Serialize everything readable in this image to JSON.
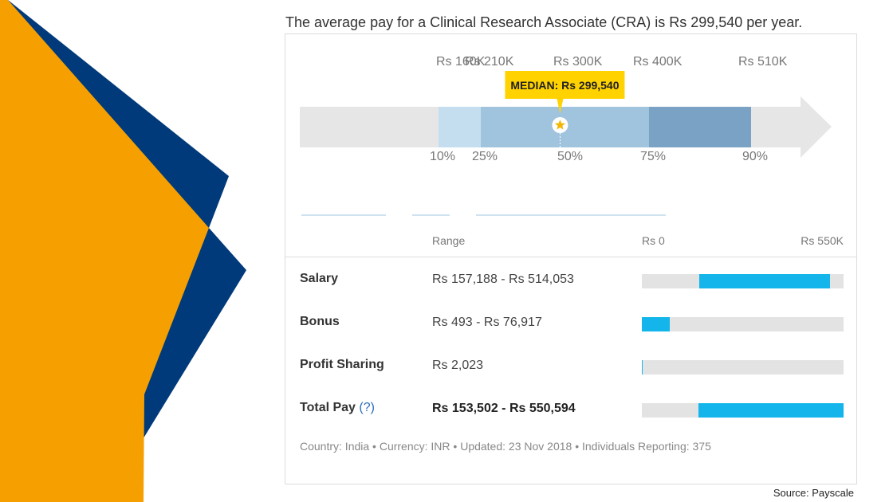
{
  "headline": "The average pay for a Clinical Research Associate (CRA) is Rs 299,540 per year.",
  "chart_data": {
    "type": "bar",
    "title": "",
    "percentile_labels": [
      "10%",
      "25%",
      "50%",
      "75%",
      "90%"
    ],
    "percentiles": [
      10,
      25,
      50,
      75,
      90
    ],
    "values_label": [
      "Rs 160K",
      "Rs 210K",
      "Rs 300K",
      "Rs 400K",
      "Rs 510K"
    ],
    "values": [
      160000,
      210000,
      300000,
      400000,
      510000
    ],
    "median_label": "MEDIAN: Rs 299,540",
    "median": 299540,
    "axis_min": 0,
    "axis_max": 550000
  },
  "table": {
    "col_range": "Range",
    "col_min": "Rs 0",
    "col_max": "Rs 550K",
    "rows": [
      {
        "label": "Salary",
        "range": "Rs 157,188 - Rs 514,053",
        "min": 157188,
        "max": 514053
      },
      {
        "label": "Bonus",
        "range": "Rs 493 - Rs 76,917",
        "min": 493,
        "max": 76917
      },
      {
        "label": "Profit Sharing",
        "range": "Rs 2,023",
        "min": 0,
        "max": 2023
      },
      {
        "label": "Total Pay",
        "help": "(?)",
        "range": "Rs 153,502 - Rs 550,594",
        "min": 153502,
        "max": 550594
      }
    ]
  },
  "footnote": "Country: India • Currency: INR • Updated: 23 Nov 2018 • Individuals Reporting: 375",
  "source": "Source: Payscale",
  "colors": {
    "orange": "#F5A000",
    "navy": "#003A7A",
    "bar_accent": "#13B5EA",
    "tooltip": "#FFD200",
    "band_light": "#C5DEEF",
    "band_mid": "#A0C3DE",
    "band_dark": "#7AA2C5"
  }
}
